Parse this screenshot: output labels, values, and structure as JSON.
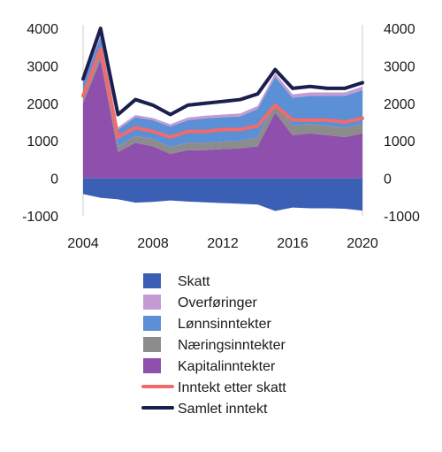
{
  "chart_data": {
    "type": "area",
    "title": "",
    "xlabel": "",
    "ylabel": "",
    "x": [
      2004,
      2005,
      2006,
      2007,
      2008,
      2009,
      2010,
      2011,
      2012,
      2013,
      2014,
      2015,
      2016,
      2017,
      2018,
      2019,
      2020
    ],
    "xticks": [
      "2004",
      "2008",
      "2012",
      "2016",
      "2020"
    ],
    "yticks": [
      "4000",
      "3000",
      "2000",
      "1000",
      "0",
      "-1000"
    ],
    "ylim": [
      -1000,
      4000
    ],
    "stack_order": [
      "Kapitalinntekter",
      "Næringsinntekter",
      "Lønnsinntekter",
      "Overføringer"
    ],
    "series": [
      {
        "name": "Skatt",
        "kind": "area",
        "color": "#3a5fb5",
        "values": [
          -420,
          -520,
          -560,
          -650,
          -630,
          -590,
          -620,
          -640,
          -660,
          -680,
          -700,
          -870,
          -780,
          -800,
          -800,
          -810,
          -860
        ]
      },
      {
        "name": "Overføringer",
        "kind": "area",
        "color": "#c39bd3",
        "values": [
          80,
          90,
          60,
          60,
          60,
          60,
          70,
          70,
          70,
          80,
          80,
          100,
          90,
          90,
          90,
          90,
          100
        ]
      },
      {
        "name": "Lønnsinntekter",
        "kind": "area",
        "color": "#5b8fd6",
        "values": [
          450,
          500,
          450,
          500,
          500,
          550,
          600,
          650,
          650,
          650,
          750,
          700,
          750,
          750,
          800,
          850,
          900
        ]
      },
      {
        "name": "Næringsinntekter",
        "kind": "area",
        "color": "#8c8c8c",
        "values": [
          100,
          120,
          150,
          180,
          200,
          180,
          200,
          200,
          200,
          200,
          250,
          250,
          250,
          250,
          250,
          250,
          250
        ]
      },
      {
        "name": "Kapitalinntekter",
        "kind": "area",
        "color": "#8e4fad",
        "values": [
          2000,
          3150,
          700,
          950,
          850,
          650,
          750,
          750,
          780,
          800,
          850,
          1750,
          1150,
          1200,
          1150,
          1100,
          1200
        ]
      },
      {
        "name": "Inntekt etter skatt",
        "kind": "line",
        "color": "#f26b6b",
        "values": [
          2200,
          3450,
          1100,
          1350,
          1250,
          1100,
          1250,
          1250,
          1300,
          1300,
          1400,
          1950,
          1550,
          1550,
          1550,
          1500,
          1600
        ]
      },
      {
        "name": "Samlet inntekt",
        "kind": "line",
        "color": "#1a1f4d",
        "values": [
          2650,
          4000,
          1700,
          2100,
          1950,
          1700,
          1950,
          2000,
          2050,
          2100,
          2250,
          2900,
          2400,
          2450,
          2400,
          2400,
          2550
        ]
      }
    ],
    "legend": {
      "position": "bottom",
      "entries": [
        {
          "label": "Skatt",
          "color": "#3a5fb5",
          "kind": "area"
        },
        {
          "label": "Overføringer",
          "color": "#c39bd3",
          "kind": "area"
        },
        {
          "label": "Lønnsinntekter",
          "color": "#5b8fd6",
          "kind": "area"
        },
        {
          "label": "Næringsinntekter",
          "color": "#8c8c8c",
          "kind": "area"
        },
        {
          "label": "Kapitalinntekter",
          "color": "#8e4fad",
          "kind": "area"
        },
        {
          "label": "Inntekt etter skatt",
          "color": "#f26b6b",
          "kind": "line"
        },
        {
          "label": "Samlet inntekt",
          "color": "#1a1f4d",
          "kind": "line"
        }
      ]
    },
    "grid": false,
    "right_axis_mirror": true
  }
}
